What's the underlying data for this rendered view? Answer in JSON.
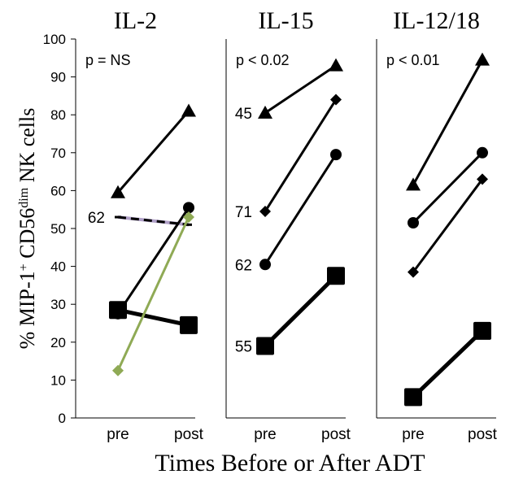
{
  "chart_data": {
    "type": "line",
    "ylabel": "% MIP-1",
    "ylabel_sup1": "+",
    "ylabel_mid": " CD56",
    "ylabel_sup2": "dim",
    "ylabel_end": " NK cells",
    "xlabel": "Times Before or After ADT",
    "ylim": [
      0,
      100
    ],
    "yticks": [
      0,
      10,
      20,
      30,
      40,
      50,
      60,
      70,
      80,
      90,
      100
    ],
    "categories": [
      "pre",
      "post"
    ],
    "grid": false,
    "colors": {
      "main": "#000000",
      "green": "#8FAA55",
      "dashed_series": "#B0A0C8"
    },
    "panels": [
      {
        "title": "IL-2",
        "pvalue": "p = NS",
        "series": [
          {
            "marker": "triangle",
            "values": [
              59.5,
              81
            ],
            "color": "#000000",
            "width": 3
          },
          {
            "marker": "none",
            "values": [
              53,
              51
            ],
            "color": "#000000",
            "width": 3,
            "dashed": true,
            "label": "62"
          },
          {
            "marker": "circle",
            "values": [
              27.5,
              55.5
            ],
            "color": "#000000",
            "width": 3
          },
          {
            "marker": "square",
            "values": [
              28.5,
              24.5
            ],
            "color": "#000000",
            "width": 5
          },
          {
            "marker": "diamond",
            "values": [
              12.5,
              53
            ],
            "color": "#8FAA55",
            "width": 3
          }
        ]
      },
      {
        "title": "IL-15",
        "pvalue": "p < 0.02",
        "series": [
          {
            "marker": "triangle",
            "values": [
              80.5,
              93
            ],
            "color": "#000000",
            "width": 3,
            "label": "45"
          },
          {
            "marker": "diamond",
            "values": [
              54.5,
              84
            ],
            "color": "#000000",
            "width": 3,
            "label": "71"
          },
          {
            "marker": "circle",
            "values": [
              40.5,
              69.5
            ],
            "color": "#000000",
            "width": 3,
            "label": "62"
          },
          {
            "marker": "square",
            "values": [
              19,
              37.5
            ],
            "color": "#000000",
            "width": 5,
            "label": "55"
          }
        ]
      },
      {
        "title": "IL-12/18",
        "pvalue": "p < 0.01",
        "series": [
          {
            "marker": "triangle",
            "values": [
              61.5,
              94.5
            ],
            "color": "#000000",
            "width": 3
          },
          {
            "marker": "circle",
            "values": [
              51.5,
              70
            ],
            "color": "#000000",
            "width": 3
          },
          {
            "marker": "diamond",
            "values": [
              38.5,
              63
            ],
            "color": "#000000",
            "width": 3
          },
          {
            "marker": "square",
            "values": [
              5.5,
              23
            ],
            "color": "#000000",
            "width": 5
          }
        ]
      }
    ]
  }
}
